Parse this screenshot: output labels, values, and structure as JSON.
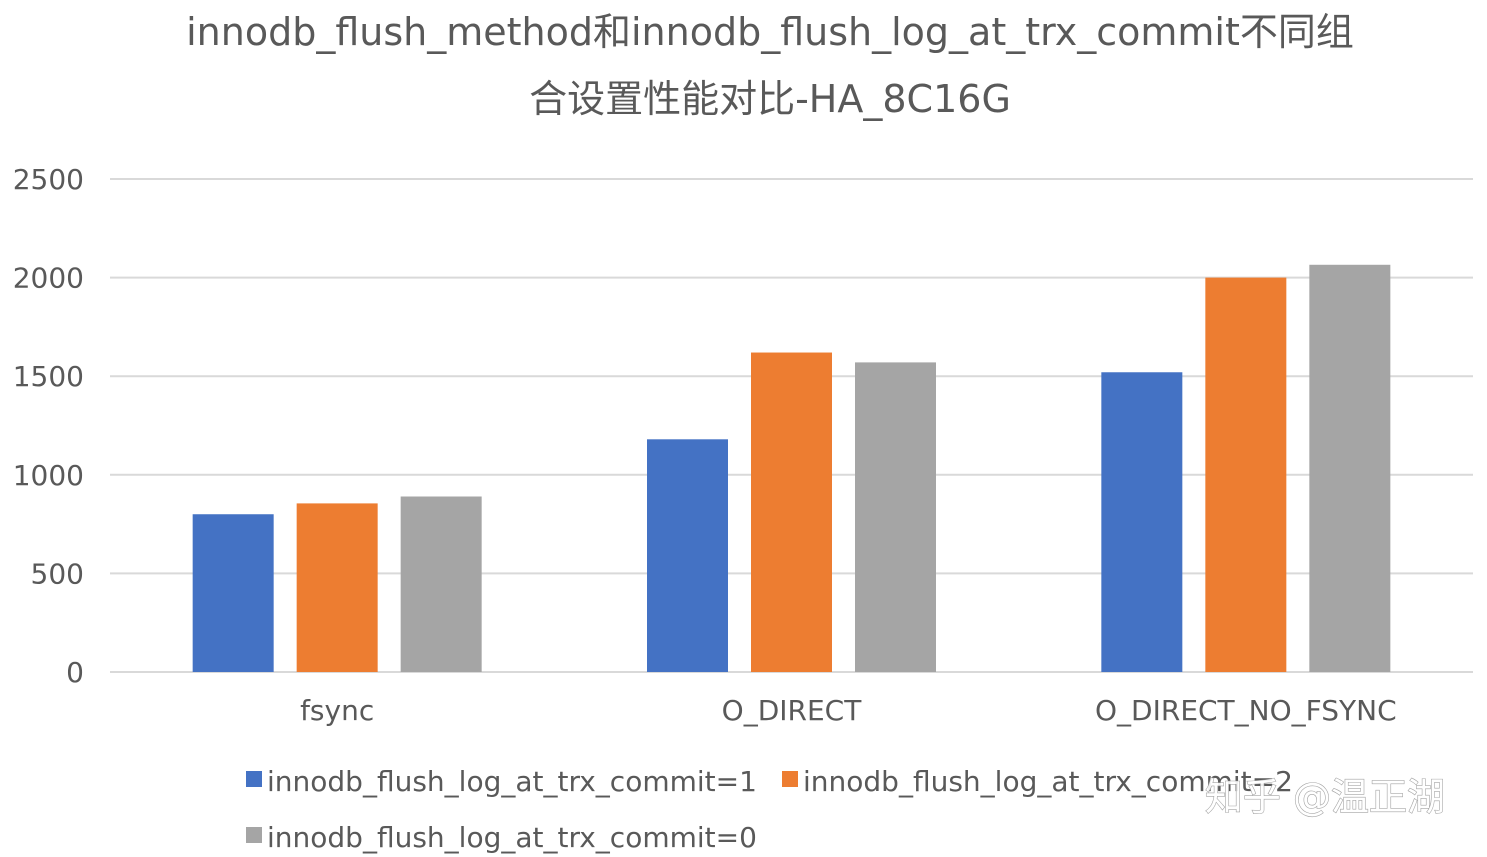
{
  "chart_data": {
    "type": "bar",
    "title_lines": [
      "innodb_flush_method和innodb_flush_log_at_trx_commit不同组",
      "合设置性能对比-HA_8C16G"
    ],
    "categories": [
      "fsync",
      "O_DIRECT",
      "O_DIRECT_NO_FSYNC"
    ],
    "series": [
      {
        "name": "innodb_flush_log_at_trx_commit=1",
        "color": "#4472C4",
        "values": [
          800,
          1180,
          1520
        ]
      },
      {
        "name": "innodb_flush_log_at_trx_commit=2",
        "color": "#ED7D31",
        "values": [
          855,
          1620,
          2000
        ]
      },
      {
        "name": "innodb_flush_log_at_trx_commit=0",
        "color": "#A5A5A5",
        "values": [
          890,
          1570,
          2065
        ]
      }
    ],
    "ylim": [
      0,
      2500
    ],
    "yticks": [
      "0",
      "500",
      "1000",
      "1500",
      "2000",
      "2500"
    ],
    "grid": true,
    "legend_position": "bottom"
  },
  "watermark": "知乎 @温正湖",
  "colors": {
    "gridline": "#D9D9D9",
    "text": "#595959"
  }
}
